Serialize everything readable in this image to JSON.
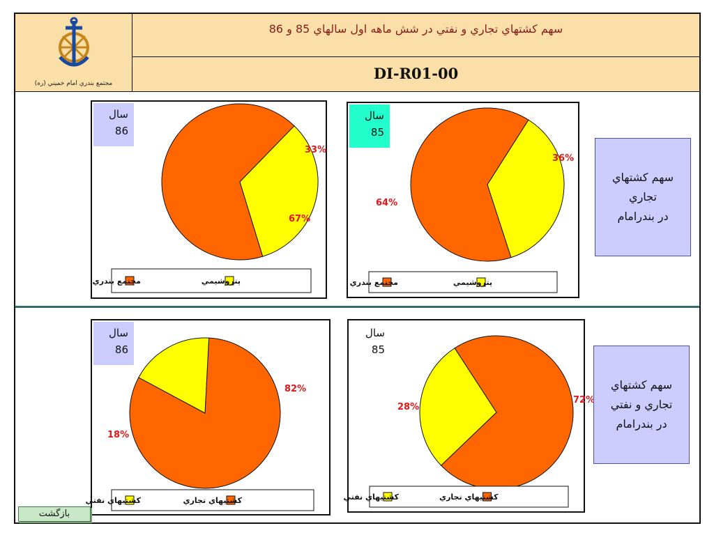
{
  "header": {
    "logo_caption": "مجتمع بندري امام خميني (ره)",
    "title": "سهم كشتهاي تجاري و نفتي در شش ماهه اول سالهاي 85 و 86",
    "code": "DI-R01-00"
  },
  "rows": [
    {
      "side_label": [
        "سهم كشتهاي",
        "تجاري",
        "در بندرامام"
      ]
    },
    {
      "side_label": [
        "سهم كشتهاي",
        "تجاري و نفتي",
        "در بندرامام"
      ]
    }
  ],
  "back_button": "بازگشت",
  "colors": {
    "orange": "#ff6600",
    "yellow": "#ffff00",
    "year86": "#ccccff",
    "year85": "#22ffcc"
  },
  "chart_data": [
    {
      "type": "pie",
      "year_label": "سال",
      "year": "86",
      "slices": [
        {
          "name": "مجتمع بندري",
          "value": 67,
          "label": "67%",
          "color": "#ff6600"
        },
        {
          "name": "پتروشيمي",
          "value": 33,
          "label": "33%",
          "color": "#ffff00"
        }
      ]
    },
    {
      "type": "pie",
      "year_label": "سال",
      "year": "85",
      "slices": [
        {
          "name": "مجتمع بندري",
          "value": 64,
          "label": "64%",
          "color": "#ff6600"
        },
        {
          "name": "پتروشيمي",
          "value": 36,
          "label": "36%",
          "color": "#ffff00"
        }
      ]
    },
    {
      "type": "pie",
      "year_label": "سال",
      "year": "86",
      "slices": [
        {
          "name": "كشتيهاي تجاري",
          "value": 82,
          "label": "82%",
          "color": "#ff6600"
        },
        {
          "name": "كشتيهاي نفتي",
          "value": 18,
          "label": "18%",
          "color": "#ffff00"
        }
      ]
    },
    {
      "type": "pie",
      "year_label": "سال",
      "year": "85",
      "slices": [
        {
          "name": "كشتيهاي تجاري",
          "value": 72,
          "label": "72%",
          "color": "#ff6600"
        },
        {
          "name": "كشتيهاي نفتي",
          "value": 28,
          "label": "28%",
          "color": "#ffff00"
        }
      ]
    }
  ]
}
